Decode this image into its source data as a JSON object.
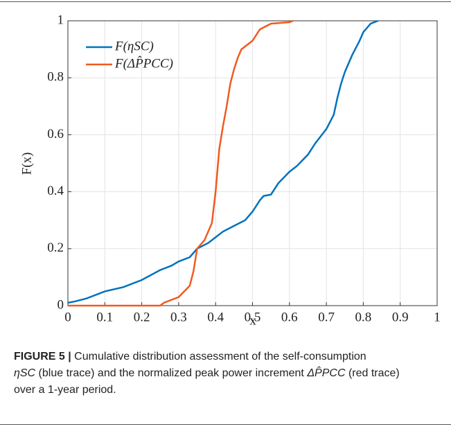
{
  "chart_data": {
    "type": "line",
    "xlabel": "x",
    "ylabel": "F(x)",
    "xlim": [
      0,
      1
    ],
    "ylim": [
      0,
      1
    ],
    "xticks": [
      0,
      0.1,
      0.2,
      0.3,
      0.4,
      0.5,
      0.6,
      0.7,
      0.8,
      0.9,
      1
    ],
    "yticks": [
      0,
      0.2,
      0.4,
      0.6,
      0.8,
      1
    ],
    "grid": true,
    "legend": "upper left",
    "series": [
      {
        "name": "F(ηSC)",
        "color": "#0072bd",
        "x": [
          0,
          0.02,
          0.05,
          0.08,
          0.1,
          0.15,
          0.2,
          0.25,
          0.28,
          0.3,
          0.33,
          0.35,
          0.38,
          0.4,
          0.42,
          0.45,
          0.48,
          0.5,
          0.52,
          0.53,
          0.55,
          0.57,
          0.6,
          0.62,
          0.65,
          0.67,
          0.7,
          0.72,
          0.73,
          0.74,
          0.75,
          0.77,
          0.79,
          0.8,
          0.82,
          0.84
        ],
        "values": [
          0.01,
          0.015,
          0.025,
          0.04,
          0.05,
          0.065,
          0.09,
          0.125,
          0.14,
          0.155,
          0.17,
          0.2,
          0.22,
          0.24,
          0.26,
          0.28,
          0.3,
          0.33,
          0.37,
          0.385,
          0.39,
          0.43,
          0.47,
          0.49,
          0.53,
          0.57,
          0.62,
          0.67,
          0.73,
          0.78,
          0.82,
          0.88,
          0.93,
          0.96,
          0.99,
          1
        ]
      },
      {
        "name": "F(ΔP̂PCC)",
        "color": "#f05a1e",
        "x": [
          0,
          0.25,
          0.26,
          0.3,
          0.33,
          0.34,
          0.35,
          0.37,
          0.39,
          0.4,
          0.41,
          0.42,
          0.43,
          0.44,
          0.45,
          0.46,
          0.47,
          0.5,
          0.52,
          0.55,
          0.6,
          0.61
        ],
        "values": [
          0,
          0,
          0.01,
          0.03,
          0.07,
          0.12,
          0.2,
          0.23,
          0.29,
          0.4,
          0.55,
          0.63,
          0.7,
          0.78,
          0.83,
          0.87,
          0.9,
          0.93,
          0.97,
          0.99,
          0.995,
          1
        ]
      }
    ]
  },
  "caption": [
    "FIGURE 5 |",
    " Cumulative distribution assessment of the self-consumption",
    "ηSC",
    " (blue trace) and the normalized peak power increment ",
    "ΔP̂PCC",
    " (red trace)",
    "over a 1-year period."
  ]
}
